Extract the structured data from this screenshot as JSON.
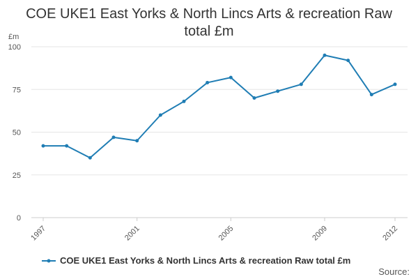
{
  "chart_data": {
    "type": "line",
    "title_lines": [
      "COE UKE1 East Yorks & North Lincs Arts & recreation Raw",
      "total £m"
    ],
    "ylabel": "£m",
    "xlabel": "",
    "x": [
      1997,
      1998,
      1999,
      2000,
      2001,
      2002,
      2003,
      2004,
      2005,
      2006,
      2007,
      2008,
      2009,
      2010,
      2011,
      2012
    ],
    "x_tick_labels": [
      "1997",
      "2001",
      "2005",
      "2009",
      "2012"
    ],
    "y_ticks": [
      0,
      25,
      50,
      75,
      100
    ],
    "ylim": [
      0,
      100
    ],
    "grid": true,
    "legend_position": "bottom",
    "series": [
      {
        "name": "COE UKE1 East Yorks & North Lincs Arts & recreation Raw total £m",
        "color": "#1f7db4",
        "values": [
          42,
          42,
          35,
          47,
          45,
          60,
          68,
          79,
          82,
          70,
          74,
          78,
          95,
          92,
          72,
          78
        ]
      }
    ]
  },
  "source_label": "Source:"
}
